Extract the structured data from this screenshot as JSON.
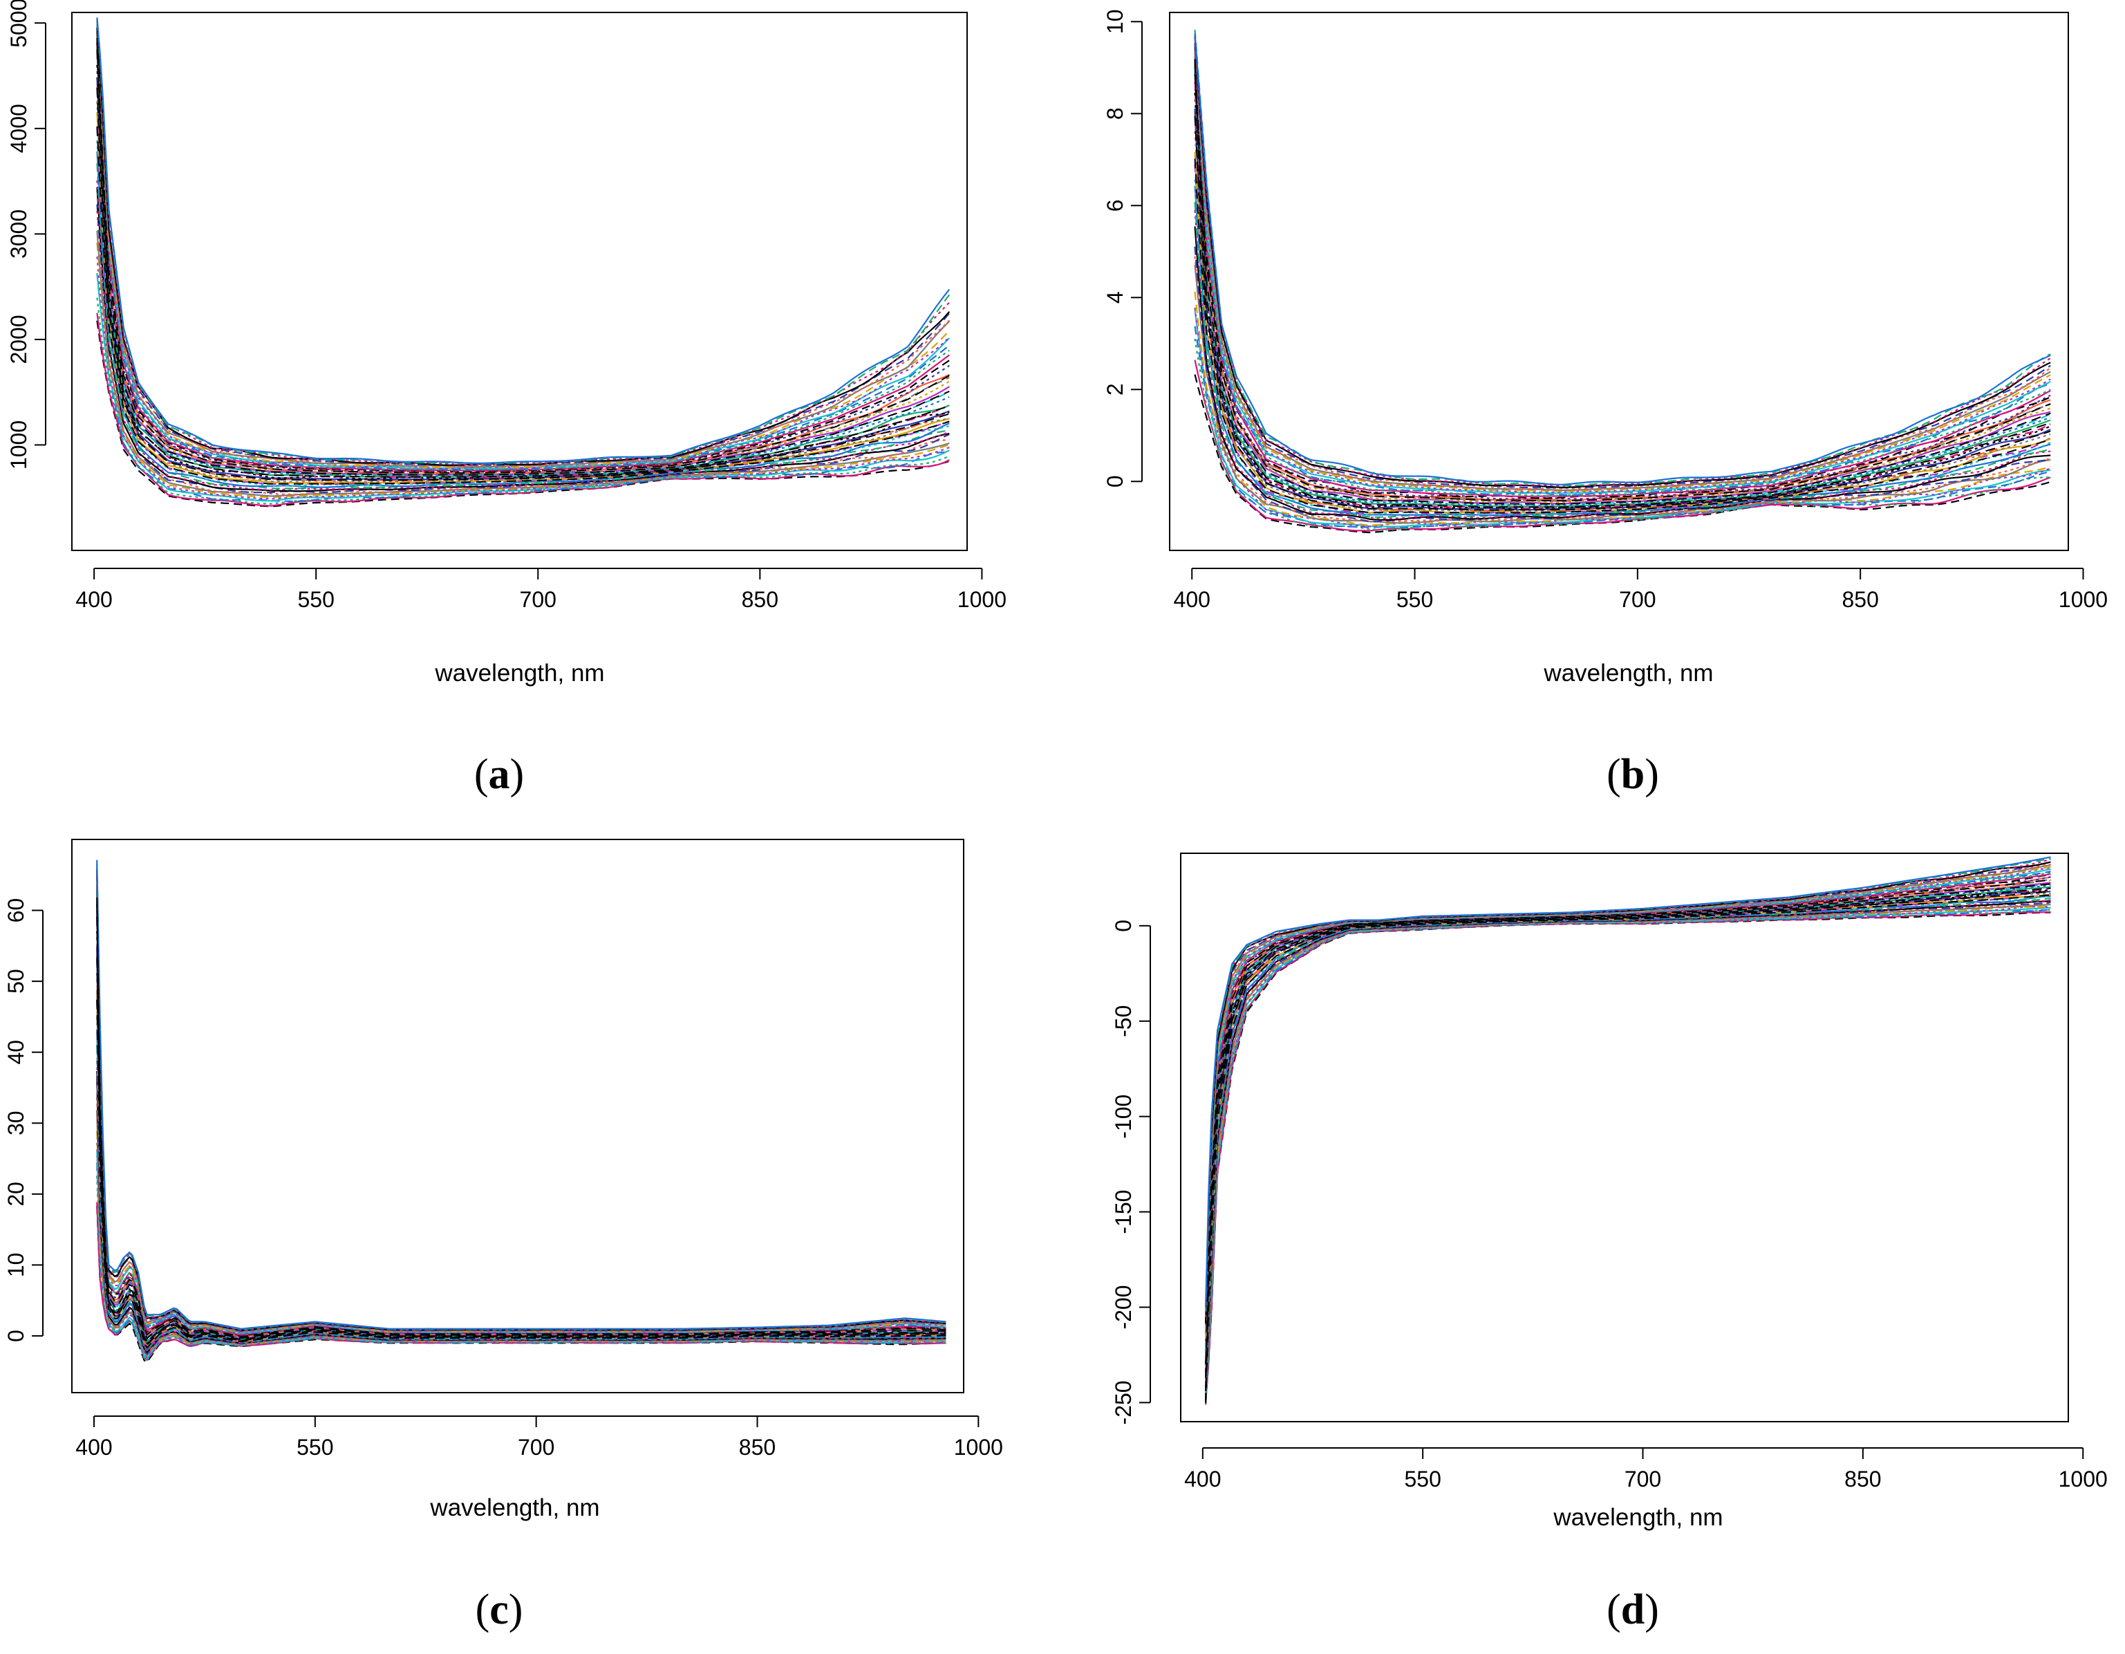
{
  "figure": {
    "panels": [
      {
        "id": "a",
        "label_open": "(",
        "label_letter": "a",
        "label_close": ")"
      },
      {
        "id": "b",
        "label_open": "(",
        "label_letter": "b",
        "label_close": ")"
      },
      {
        "id": "c",
        "label_open": "(",
        "label_letter": "c",
        "label_close": ")"
      },
      {
        "id": "d",
        "label_open": "(",
        "label_letter": "d",
        "label_close": ")"
      }
    ]
  },
  "chart_data": [
    {
      "panel": "a",
      "type": "line",
      "xlabel": "wavelength, nm",
      "ylabel": "",
      "xlim": [
        385,
        990
      ],
      "ylim": [
        0,
        5100
      ],
      "xticks": [
        400,
        550,
        700,
        850,
        1000
      ],
      "yticks": [
        1000,
        2000,
        3000,
        4000,
        5000
      ],
      "series_count": "many (overlapping sample spectra)",
      "envelope": {
        "x": [
          402,
          405,
          410,
          420,
          430,
          450,
          480,
          520,
          550,
          600,
          650,
          700,
          750,
          790,
          850,
          900,
          950,
          978
        ],
        "median": [
          4800,
          3700,
          2400,
          1500,
          1150,
          900,
          780,
          720,
          710,
          700,
          700,
          710,
          730,
          770,
          900,
          1050,
          1250,
          1380
        ],
        "upper": [
          5020,
          4500,
          3200,
          2100,
          1600,
          1200,
          1000,
          920,
          880,
          850,
          830,
          840,
          880,
          900,
          1180,
          1500,
          1950,
          2450
        ],
        "lower": [
          2200,
          1900,
          1500,
          950,
          750,
          520,
          450,
          420,
          450,
          480,
          520,
          550,
          600,
          680,
          680,
          700,
          760,
          850
        ]
      }
    },
    {
      "panel": "b",
      "type": "line",
      "xlabel": "wavelength, nm",
      "ylabel": "",
      "xlim": [
        385,
        990
      ],
      "ylim": [
        -1.5,
        10.2
      ],
      "xticks": [
        400,
        550,
        700,
        850,
        1000
      ],
      "yticks": [
        0,
        2,
        4,
        6,
        8,
        10
      ],
      "series_count": "many (overlapping sample spectra)",
      "envelope": {
        "x": [
          402,
          405,
          410,
          420,
          430,
          450,
          480,
          520,
          550,
          600,
          650,
          700,
          750,
          790,
          850,
          900,
          950,
          978
        ],
        "median": [
          9.0,
          6.8,
          4.0,
          2.0,
          1.0,
          0.1,
          -0.3,
          -0.5,
          -0.5,
          -0.55,
          -0.55,
          -0.5,
          -0.4,
          -0.3,
          0.1,
          0.5,
          1.0,
          1.3
        ],
        "upper": [
          9.7,
          8.5,
          6.5,
          3.5,
          2.3,
          1.0,
          0.5,
          0.2,
          0.1,
          0.0,
          -0.05,
          0.0,
          0.1,
          0.2,
          0.8,
          1.4,
          2.2,
          2.8
        ],
        "lower": [
          2.4,
          2.0,
          1.4,
          0.3,
          -0.3,
          -0.8,
          -1.0,
          -1.1,
          -1.05,
          -1.0,
          -0.95,
          -0.85,
          -0.7,
          -0.5,
          -0.6,
          -0.5,
          -0.2,
          0.0
        ]
      }
    },
    {
      "panel": "c",
      "type": "line",
      "xlabel": "wavelength, nm",
      "ylabel": "",
      "xlim": [
        385,
        990
      ],
      "ylim": [
        -8,
        70
      ],
      "xticks": [
        400,
        550,
        700,
        850,
        1000
      ],
      "yticks": [
        0,
        10,
        20,
        30,
        40,
        50,
        60
      ],
      "series_count": "many (overlapping sample spectra)",
      "envelope": {
        "x": [
          402,
          404,
          407,
          410,
          415,
          420,
          425,
          430,
          435,
          445,
          455,
          465,
          475,
          500,
          550,
          600,
          650,
          700,
          750,
          800,
          850,
          900,
          950,
          978
        ],
        "median": [
          60,
          30,
          12,
          5,
          3,
          5,
          7,
          4,
          -1,
          1,
          2,
          0,
          0.5,
          -0.5,
          1,
          0,
          0,
          0,
          0,
          0,
          0.3,
          0.3,
          0.5,
          0.5
        ],
        "upper": [
          67,
          45,
          20,
          10,
          9,
          11,
          12,
          9,
          3,
          3,
          4,
          2,
          2,
          1,
          2,
          1,
          1,
          1,
          1,
          1,
          1.2,
          1.5,
          2.5,
          2
        ],
        "lower": [
          18,
          8,
          3,
          1,
          0,
          1,
          2,
          -1,
          -4,
          -1,
          -0.5,
          -1.5,
          -1,
          -1.5,
          -0.5,
          -1,
          -1,
          -1,
          -1,
          -1,
          -0.8,
          -1,
          -1.2,
          -1
        ]
      }
    },
    {
      "panel": "d",
      "type": "line",
      "xlabel": "wavelength, nm",
      "ylabel": "",
      "xlim": [
        385,
        990
      ],
      "ylim": [
        -260,
        38
      ],
      "xticks": [
        400,
        550,
        700,
        850,
        1000
      ],
      "yticks": [
        -250,
        -200,
        -150,
        -100,
        -50,
        0
      ],
      "series_count": "many (overlapping sample spectra)",
      "envelope": {
        "x": [
          402,
          405,
          410,
          420,
          430,
          450,
          480,
          500,
          520,
          550,
          600,
          650,
          700,
          750,
          800,
          850,
          900,
          950,
          978
        ],
        "median": [
          -250,
          -160,
          -90,
          -45,
          -25,
          -12,
          -4,
          0,
          1,
          2,
          3,
          4,
          5,
          7,
          9,
          12,
          15,
          18,
          20
        ],
        "upper": [
          -200,
          -110,
          -55,
          -20,
          -10,
          -3,
          1,
          3,
          3,
          5,
          6,
          7,
          9,
          12,
          15,
          20,
          26,
          32,
          36
        ],
        "lower": [
          -250,
          -220,
          -130,
          -75,
          -45,
          -25,
          -10,
          -4,
          -3,
          -2,
          0,
          1,
          1,
          2,
          3,
          4,
          5,
          6,
          7
        ]
      }
    }
  ]
}
